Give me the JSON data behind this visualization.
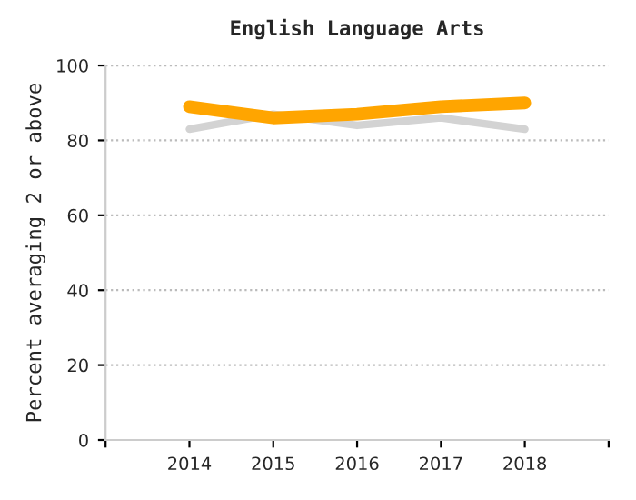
{
  "chart_data": {
    "type": "line",
    "title": "English Language Arts",
    "ylabel": "Percent averaging 2 or above",
    "x": [
      2014,
      2015,
      2016,
      2017,
      2018
    ],
    "series": [
      {
        "color": "#d3d3d3",
        "values": [
          83,
          87,
          84,
          86,
          83
        ]
      },
      {
        "color": "#ffa500",
        "values": [
          89,
          86,
          87,
          89,
          90
        ]
      }
    ],
    "xlim": [
      2013,
      2019
    ],
    "xticks": [
      {
        "value": 2013,
        "label": null
      },
      2014,
      2015,
      2016,
      2017,
      2018,
      {
        "value": 2019,
        "label": null
      }
    ],
    "ylim": [
      0,
      100
    ],
    "yticks": [
      0,
      20,
      40,
      60,
      80,
      100
    ],
    "grid": "y",
    "legend": false
  }
}
